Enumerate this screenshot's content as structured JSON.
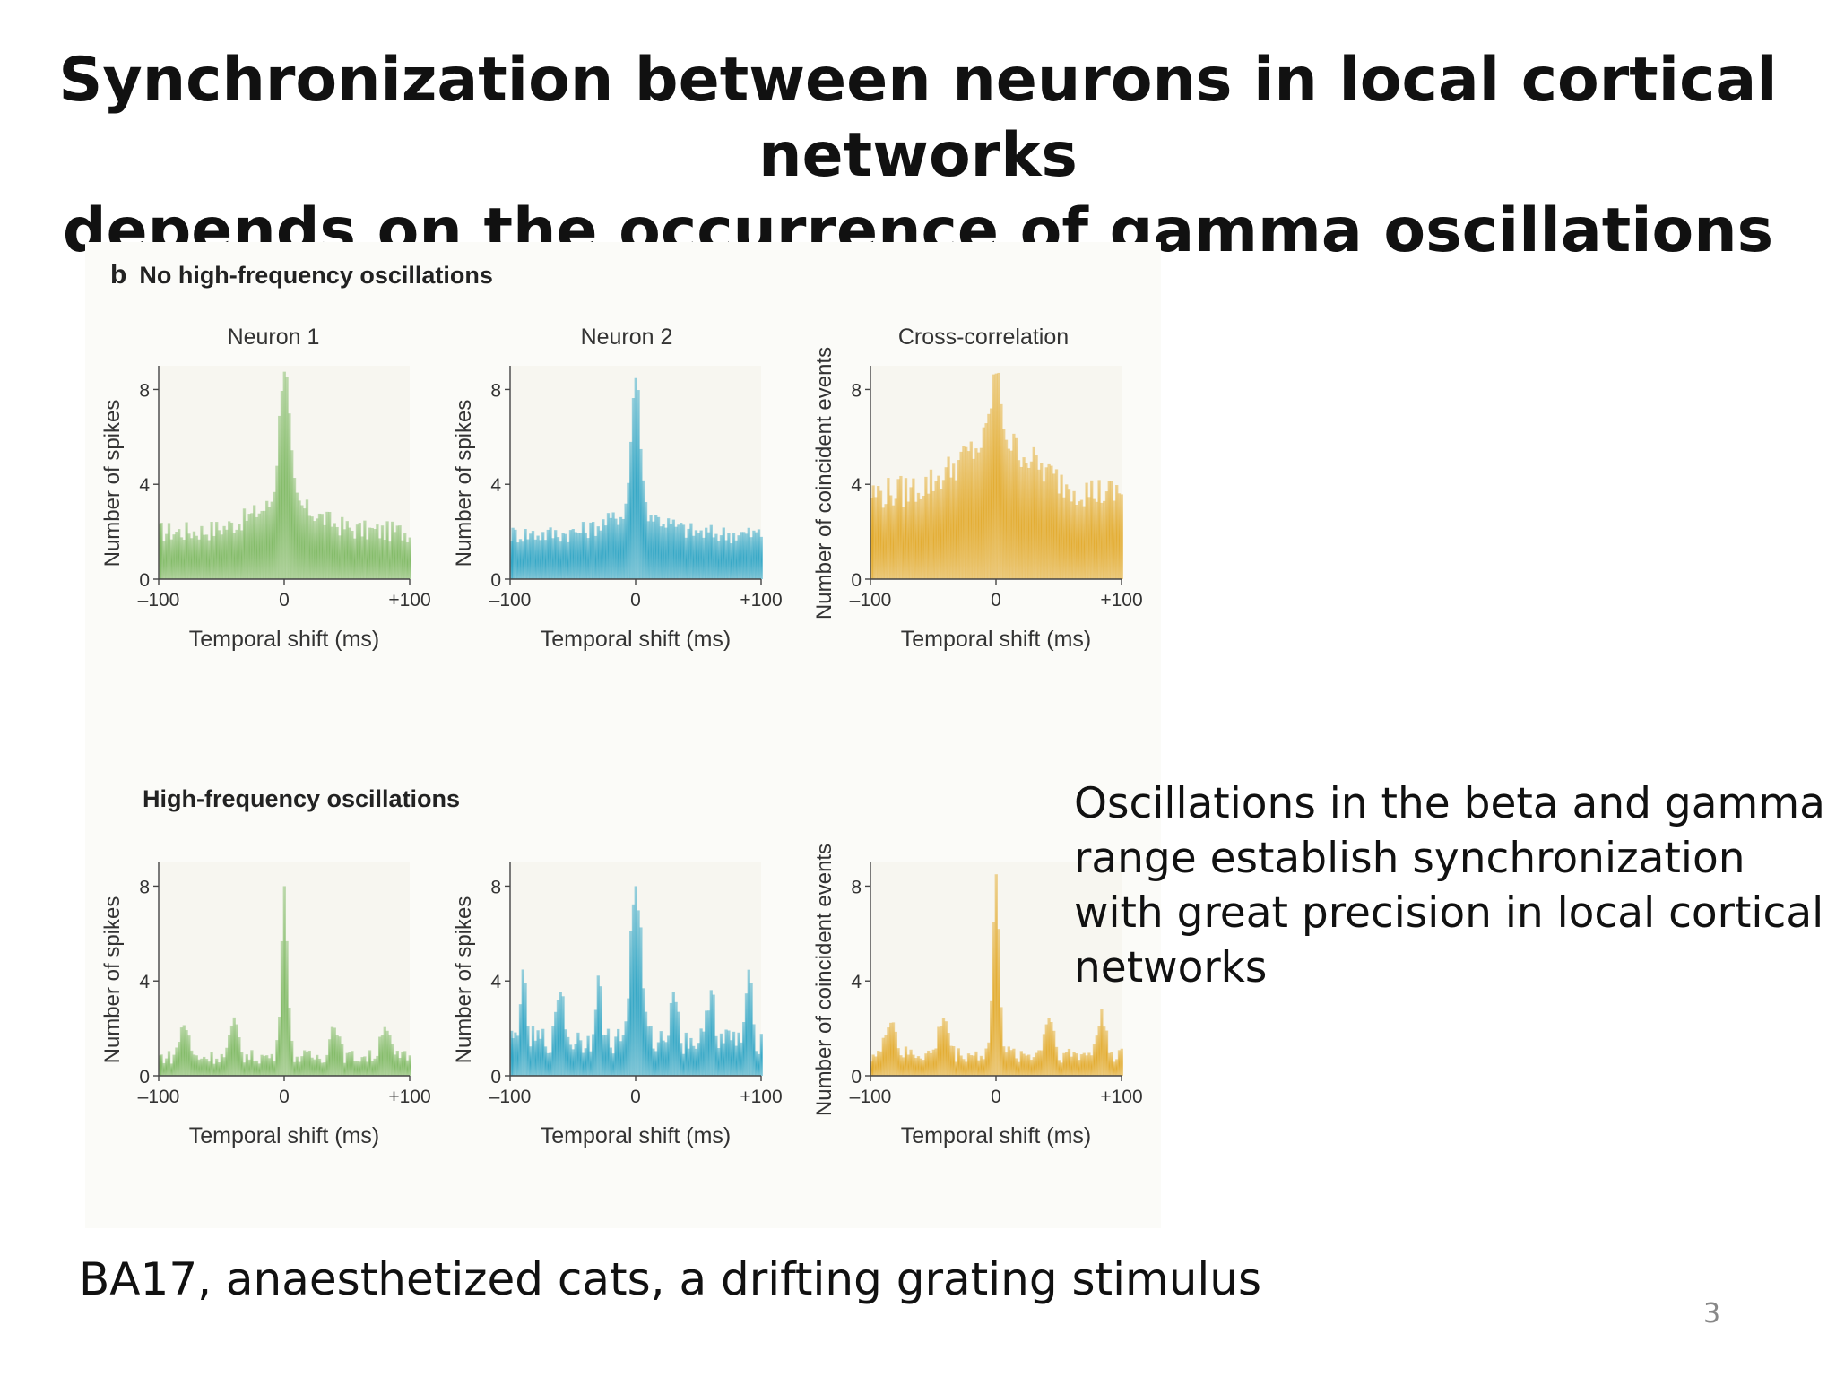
{
  "slide": {
    "title_line1": "Synchronization between neurons in local cortical networks",
    "title_line2": "depends on the occurrence of gamma oscillations",
    "side_note": "Oscillations in the beta and gamma range establish synchronization with great precision in local cortical networks",
    "footnote": "BA17, anaesthetized cats, a drifting grating stimulus",
    "page_number": "3"
  },
  "figure": {
    "panel_letter": "b",
    "panel_top_label": "No high-frequency oscillations",
    "panel_bottom_label": "High-frequency oscillations",
    "column_titles": [
      "Neuron 1",
      "Neuron 2",
      "Cross-correlation"
    ]
  },
  "colors": {
    "green": "#7cb860",
    "blue": "#2aa3c4",
    "orange": "#e2a826"
  },
  "chart_data": [
    {
      "type": "bar",
      "id": "top-neuron1",
      "title": "Neuron 1",
      "xlabel": "Temporal shift (ms)",
      "ylabel": "Number of spikes",
      "xlim": [
        -100,
        100
      ],
      "ylim": [
        0,
        9
      ],
      "xticks": [
        "–100",
        "0",
        "+100"
      ],
      "yticks": [
        0,
        4,
        8
      ],
      "color": "green",
      "profile": {
        "baseline": 2.0,
        "baseline_end": 2.0,
        "peak": 9.0,
        "peak_width": 4,
        "shoulder": 1.2,
        "shoulder_width": 25,
        "oscillation_amp": 0,
        "oscillation_period": 0,
        "noise": 0.45
      }
    },
    {
      "type": "bar",
      "id": "top-neuron2",
      "title": "Neuron 2",
      "xlabel": "Temporal shift (ms)",
      "ylabel": "Number of spikes",
      "xlim": [
        -100,
        100
      ],
      "ylim": [
        0,
        9
      ],
      "xticks": [
        "–100",
        "0",
        "+100"
      ],
      "yticks": [
        0,
        4,
        8
      ],
      "color": "blue",
      "profile": {
        "baseline": 1.9,
        "baseline_end": 1.9,
        "peak": 8.6,
        "peak_width": 3.5,
        "shoulder": 0.9,
        "shoulder_width": 22,
        "oscillation_amp": 0,
        "oscillation_period": 0,
        "noise": 0.4
      }
    },
    {
      "type": "bar",
      "id": "top-cross",
      "title": "Cross-correlation",
      "xlabel": "Temporal shift (ms)",
      "ylabel": "Number of coincident events",
      "xlim": [
        -100,
        100
      ],
      "ylim": [
        0,
        9
      ],
      "xticks": [
        "–100",
        "0",
        "+100"
      ],
      "yticks": [
        0,
        4,
        8
      ],
      "color": "orange",
      "profile": {
        "baseline": 3.6,
        "baseline_end": 3.6,
        "peak": 8.7,
        "peak_width": 4,
        "shoulder": 2.2,
        "shoulder_width": 30,
        "oscillation_amp": 0,
        "oscillation_period": 0,
        "noise": 0.7
      }
    },
    {
      "type": "bar",
      "id": "bottom-neuron1",
      "title": "",
      "xlabel": "Temporal shift (ms)",
      "ylabel": "Number of spikes",
      "xlim": [
        -100,
        100
      ],
      "ylim": [
        0,
        9
      ],
      "xticks": [
        "–100",
        "0",
        "+100"
      ],
      "yticks": [
        0,
        4,
        8
      ],
      "color": "green",
      "profile": {
        "baseline": 0.8,
        "baseline_end": 0.8,
        "peak": 8.0,
        "peak_width": 2.2,
        "shoulder": 0,
        "shoulder_width": 1,
        "oscillation_amp": 1.4,
        "oscillation_period": 40,
        "noise": 0.3
      }
    },
    {
      "type": "bar",
      "id": "bottom-neuron2",
      "title": "",
      "xlabel": "Temporal shift (ms)",
      "ylabel": "Number of spikes",
      "xlim": [
        -100,
        100
      ],
      "ylim": [
        0,
        9
      ],
      "xticks": [
        "–100",
        "0",
        "+100"
      ],
      "yticks": [
        0,
        4,
        8
      ],
      "color": "blue",
      "profile": {
        "baseline": 1.5,
        "baseline_end": 1.5,
        "peak": 8.0,
        "peak_width": 4,
        "shoulder": 0,
        "shoulder_width": 1,
        "oscillation_amp": 2.4,
        "oscillation_period": 30,
        "noise": 0.6
      }
    },
    {
      "type": "bar",
      "id": "bottom-cross",
      "title": "",
      "xlabel": "Temporal shift (ms)",
      "ylabel": "Number of coincident events",
      "xlim": [
        -100,
        100
      ],
      "ylim": [
        0,
        9
      ],
      "xticks": [
        "–100",
        "0",
        "+100"
      ],
      "yticks": [
        0,
        4,
        8
      ],
      "color": "orange",
      "profile": {
        "baseline": 0.9,
        "baseline_end": 0.9,
        "peak": 8.5,
        "peak_width": 2.2,
        "shoulder": 0,
        "shoulder_width": 1,
        "oscillation_amp": 1.6,
        "oscillation_period": 42,
        "noise": 0.35
      }
    }
  ]
}
